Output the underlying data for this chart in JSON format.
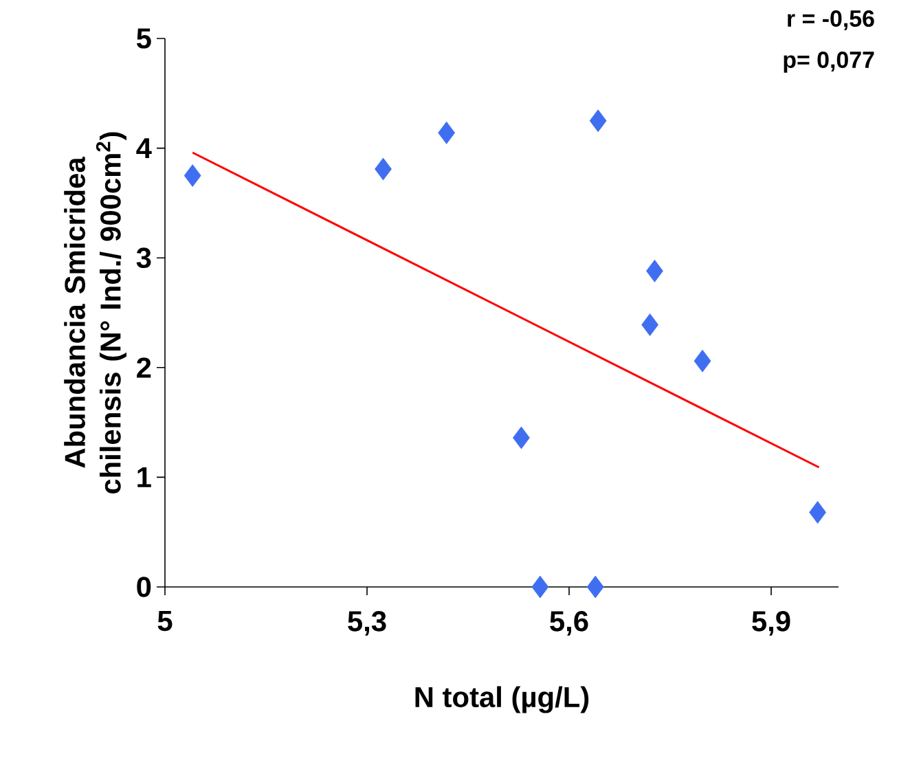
{
  "chart_data": {
    "type": "scatter",
    "xlabel": "N total (µg/L)",
    "ylabel": "Abundancia Smicridea chilensis (N° Ind./ 900cm$^{2}$)",
    "annotations": [
      "r = -0,56",
      "p= 0,077"
    ],
    "xlim": [
      5,
      6
    ],
    "ylim": [
      0,
      5
    ],
    "xticks": [
      {
        "value": 5,
        "label": "5"
      },
      {
        "value": 5.3,
        "label": "5,3"
      },
      {
        "value": 5.6,
        "label": "5,6"
      },
      {
        "value": 5.9,
        "label": "5,9"
      }
    ],
    "yticks": [
      0,
      1,
      2,
      3,
      4,
      5
    ],
    "series": [
      {
        "color": "#3f6ff0",
        "marker": "diamond",
        "x": [
          5.041,
          5.324,
          5.418,
          5.643,
          5.727,
          5.72,
          5.798,
          5.529,
          5.557,
          5.639,
          5.969
        ],
        "values": [
          3.75,
          3.81,
          4.14,
          4.25,
          2.88,
          2.39,
          2.06,
          1.36,
          0,
          0,
          0.68
        ]
      },
      {
        "type": "line",
        "color": "#ff0000",
        "marker": "none",
        "x": [
          5.041,
          5.971
        ],
        "values": [
          3.96,
          1.09
        ]
      }
    ]
  }
}
